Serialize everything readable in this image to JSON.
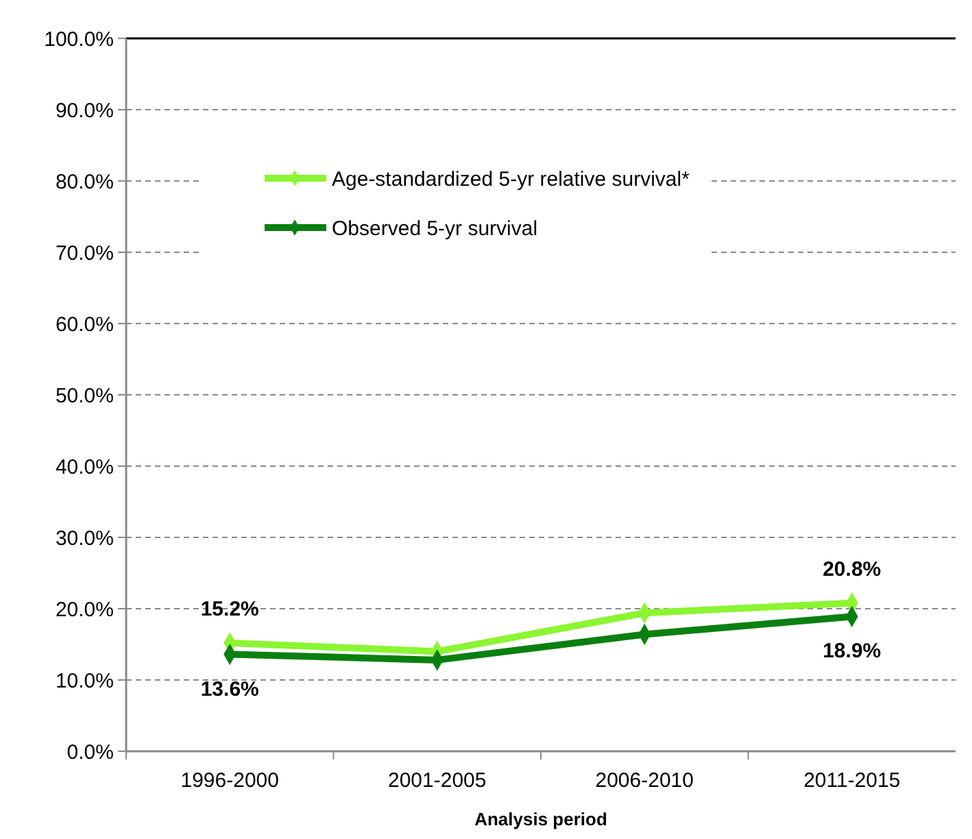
{
  "chart_data": {
    "type": "line",
    "xlabel": "Analysis period",
    "categories": [
      "1996-2000",
      "2001-2005",
      "2006-2010",
      "2011-2015"
    ],
    "series": [
      {
        "name": "Age-standardized 5-yr relative survival*",
        "color": "#8cf532",
        "values": [
          15.2,
          14.0,
          19.4,
          20.8
        ],
        "value_labels": [
          "15.2%",
          null,
          null,
          "20.8%"
        ]
      },
      {
        "name": "Observed 5-yr survival",
        "color": "#0a8010",
        "values": [
          13.6,
          12.8,
          16.4,
          18.9
        ],
        "value_labels": [
          "13.6%",
          null,
          null,
          "18.9%"
        ]
      }
    ],
    "ylim": [
      0,
      100
    ],
    "yticks": [
      {
        "value": 0,
        "label": "0.0%"
      },
      {
        "value": 10,
        "label": "10.0%"
      },
      {
        "value": 20,
        "label": "20.0%"
      },
      {
        "value": 30,
        "label": "30.0%"
      },
      {
        "value": 40,
        "label": "40.0%"
      },
      {
        "value": 50,
        "label": "50.0%"
      },
      {
        "value": 60,
        "label": "60.0%"
      },
      {
        "value": 70,
        "label": "70.0%"
      },
      {
        "value": 80,
        "label": "80.0%"
      },
      {
        "value": 90,
        "label": "90.0%"
      },
      {
        "value": 100,
        "label": "100.0%"
      }
    ],
    "grid": "y",
    "legend": "top left",
    "marker": "diamond",
    "line_style": "solid"
  }
}
